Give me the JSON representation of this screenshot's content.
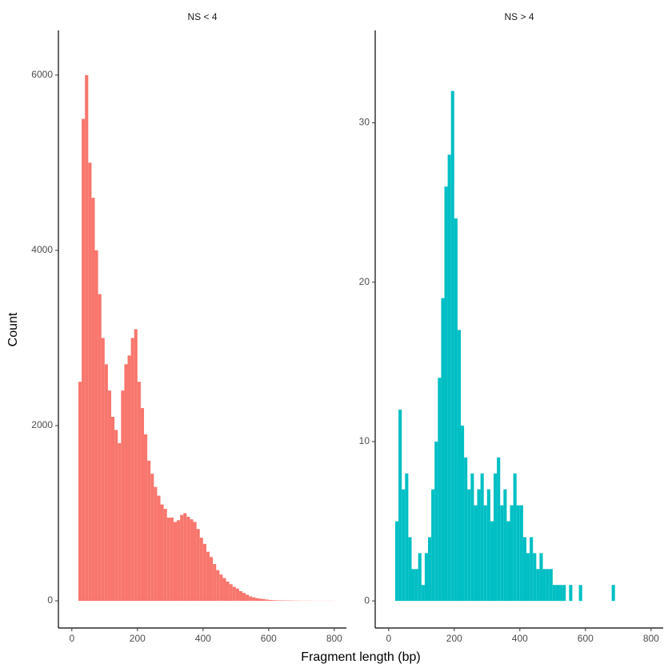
{
  "chart_data": [
    {
      "type": "histogram",
      "title": "NS < 4",
      "color": "#f8766d",
      "bins": [
        20,
        30,
        40,
        50,
        60,
        70,
        80,
        90,
        100,
        110,
        120,
        130,
        140,
        150,
        160,
        170,
        180,
        190,
        200,
        210,
        220,
        230,
        240,
        250,
        260,
        270,
        280,
        290,
        300,
        310,
        320,
        330,
        340,
        350,
        360,
        370,
        380,
        390,
        400,
        410,
        420,
        430,
        440,
        450,
        460,
        470,
        480,
        490,
        500,
        510,
        520,
        530,
        540,
        550,
        560,
        570,
        580,
        590,
        600,
        610,
        620,
        630,
        640,
        650,
        660,
        670,
        680,
        690,
        700,
        710,
        720,
        730,
        740,
        750,
        760,
        770,
        780,
        790,
        800
      ],
      "counts": [
        2500,
        5500,
        6000,
        5000,
        4600,
        4000,
        3500,
        3000,
        2700,
        2400,
        2100,
        1950,
        1800,
        2400,
        2700,
        2800,
        3000,
        3100,
        2500,
        2200,
        1900,
        1600,
        1450,
        1300,
        1200,
        1100,
        1050,
        950,
        950,
        900,
        920,
        980,
        1000,
        960,
        930,
        900,
        820,
        720,
        650,
        560,
        500,
        420,
        350,
        300,
        260,
        220,
        190,
        160,
        140,
        110,
        90,
        70,
        50,
        40,
        30,
        25,
        20,
        15,
        10,
        8,
        6,
        5,
        5,
        4,
        4,
        3,
        3,
        2,
        2,
        2,
        2,
        1,
        1,
        1,
        1,
        1,
        1,
        1
      ],
      "xlim": [
        -41,
        837
      ],
      "ylim": [
        -310,
        6510
      ],
      "xticks": [
        0,
        200,
        400,
        600,
        800
      ],
      "yticks": [
        0,
        2000,
        4000,
        6000
      ]
    },
    {
      "type": "histogram",
      "title": "NS > 4",
      "color": "#00bfc4",
      "bins": [
        20,
        30,
        40,
        50,
        60,
        70,
        80,
        90,
        100,
        110,
        120,
        130,
        140,
        150,
        160,
        170,
        180,
        190,
        200,
        210,
        220,
        230,
        240,
        250,
        260,
        270,
        280,
        290,
        300,
        310,
        320,
        330,
        340,
        350,
        360,
        370,
        380,
        390,
        400,
        410,
        420,
        430,
        440,
        450,
        460,
        470,
        480,
        490,
        500,
        510,
        520,
        530,
        540,
        550,
        560,
        570,
        580,
        590,
        600,
        610,
        620,
        630,
        640,
        650,
        660,
        670,
        680,
        690,
        700
      ],
      "counts": [
        5,
        12,
        7,
        8,
        4,
        2,
        2,
        3,
        1,
        3,
        4,
        7,
        10,
        14,
        19,
        26,
        28,
        32,
        24,
        17,
        11,
        9,
        7,
        8,
        6,
        7,
        8,
        6,
        7,
        5,
        8,
        9,
        6,
        7,
        5,
        6,
        8,
        6,
        6,
        4,
        3,
        4,
        3,
        2,
        3,
        2,
        2,
        2,
        1,
        1,
        1,
        1,
        0,
        1,
        0,
        0,
        1,
        0,
        0,
        0,
        0,
        0,
        0,
        0,
        0,
        0,
        1,
        0
      ],
      "xlim": [
        -41,
        837
      ],
      "ylim": [
        -1.7,
        35.8
      ],
      "xticks": [
        0,
        200,
        400,
        600,
        800
      ],
      "yticks": [
        0,
        10,
        20,
        30
      ]
    }
  ],
  "x_label": "Fragment length (bp)",
  "y_label": "Count"
}
